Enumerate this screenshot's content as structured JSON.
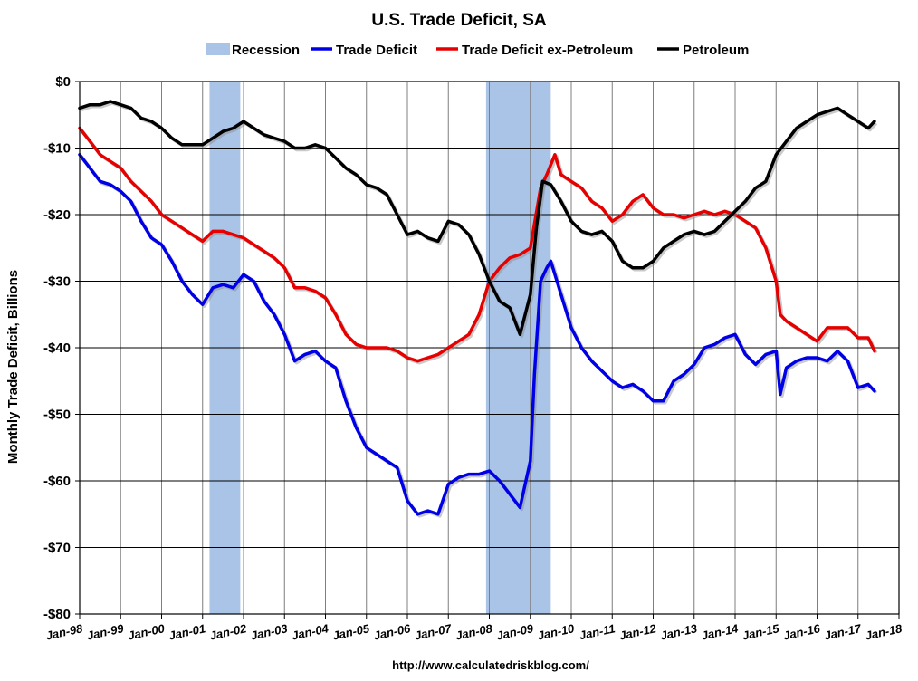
{
  "chart_data": {
    "type": "line",
    "title": "U.S. Trade Deficit, SA",
    "ylabel": "Monthly Trade Deficit, Billions",
    "xlabel": "",
    "source": "http://www.calculatedriskblog.com/",
    "ylim": [
      -80,
      0
    ],
    "y_ticks": [
      0,
      -10,
      -20,
      -30,
      -40,
      -50,
      -60,
      -70,
      -80
    ],
    "y_tick_labels": [
      "$0",
      "-$10",
      "-$20",
      "-$30",
      "-$40",
      "-$50",
      "-$60",
      "-$70",
      "-$80"
    ],
    "x_range": [
      1998.0,
      2018.0
    ],
    "x_tick_labels": [
      "Jan-98",
      "Jan-99",
      "Jan-00",
      "Jan-01",
      "Jan-02",
      "Jan-03",
      "Jan-04",
      "Jan-05",
      "Jan-06",
      "Jan-07",
      "Jan-08",
      "Jan-09",
      "Jan-10",
      "Jan-11",
      "Jan-12",
      "Jan-13",
      "Jan-14",
      "Jan-15",
      "Jan-16",
      "Jan-17",
      "Jan-18"
    ],
    "grid": true,
    "legend_position": "top",
    "legend": [
      "Recession",
      "Trade Deficit",
      "Trade Deficit ex-Petroleum",
      "Petroleum"
    ],
    "recessions": [
      {
        "start": 2001.17,
        "end": 2001.92
      },
      {
        "start": 2007.92,
        "end": 2009.5
      }
    ],
    "recession_color": "#aac4e8",
    "series": [
      {
        "name": "Trade Deficit",
        "color": "#0000e6",
        "points": [
          [
            1998.0,
            -11
          ],
          [
            1998.25,
            -13
          ],
          [
            1998.5,
            -15
          ],
          [
            1998.75,
            -15.5
          ],
          [
            1999.0,
            -16.5
          ],
          [
            1999.25,
            -18
          ],
          [
            1999.5,
            -21
          ],
          [
            1999.75,
            -23.5
          ],
          [
            2000.0,
            -24.5
          ],
          [
            2000.25,
            -27
          ],
          [
            2000.5,
            -30
          ],
          [
            2000.75,
            -32
          ],
          [
            2001.0,
            -33.5
          ],
          [
            2001.25,
            -31
          ],
          [
            2001.5,
            -30.5
          ],
          [
            2001.75,
            -31
          ],
          [
            2002.0,
            -29
          ],
          [
            2002.25,
            -30
          ],
          [
            2002.5,
            -33
          ],
          [
            2002.75,
            -35
          ],
          [
            2003.0,
            -38
          ],
          [
            2003.25,
            -42
          ],
          [
            2003.5,
            -41
          ],
          [
            2003.75,
            -40.5
          ],
          [
            2004.0,
            -42
          ],
          [
            2004.25,
            -43
          ],
          [
            2004.5,
            -48
          ],
          [
            2004.75,
            -52
          ],
          [
            2005.0,
            -55
          ],
          [
            2005.25,
            -56
          ],
          [
            2005.5,
            -57
          ],
          [
            2005.75,
            -58
          ],
          [
            2006.0,
            -63
          ],
          [
            2006.25,
            -65
          ],
          [
            2006.5,
            -64.5
          ],
          [
            2006.75,
            -65
          ],
          [
            2007.0,
            -60.5
          ],
          [
            2007.25,
            -59.5
          ],
          [
            2007.5,
            -59
          ],
          [
            2007.75,
            -59
          ],
          [
            2008.0,
            -58.5
          ],
          [
            2008.25,
            -60
          ],
          [
            2008.5,
            -62
          ],
          [
            2008.75,
            -64
          ],
          [
            2009.0,
            -57
          ],
          [
            2009.1,
            -44
          ],
          [
            2009.25,
            -30
          ],
          [
            2009.4,
            -28
          ],
          [
            2009.5,
            -27
          ],
          [
            2009.75,
            -32
          ],
          [
            2010.0,
            -37
          ],
          [
            2010.25,
            -40
          ],
          [
            2010.5,
            -42
          ],
          [
            2010.75,
            -43.5
          ],
          [
            2011.0,
            -45
          ],
          [
            2011.25,
            -46
          ],
          [
            2011.5,
            -45.5
          ],
          [
            2011.75,
            -46.5
          ],
          [
            2012.0,
            -48
          ],
          [
            2012.25,
            -48
          ],
          [
            2012.5,
            -45
          ],
          [
            2012.75,
            -44
          ],
          [
            2013.0,
            -42.5
          ],
          [
            2013.25,
            -40
          ],
          [
            2013.5,
            -39.5
          ],
          [
            2013.75,
            -38.5
          ],
          [
            2014.0,
            -38
          ],
          [
            2014.25,
            -41
          ],
          [
            2014.5,
            -42.5
          ],
          [
            2014.75,
            -41
          ],
          [
            2015.0,
            -40.5
          ],
          [
            2015.1,
            -47
          ],
          [
            2015.25,
            -43
          ],
          [
            2015.5,
            -42
          ],
          [
            2015.75,
            -41.5
          ],
          [
            2016.0,
            -41.5
          ],
          [
            2016.25,
            -42
          ],
          [
            2016.5,
            -40.5
          ],
          [
            2016.75,
            -42
          ],
          [
            2017.0,
            -46
          ],
          [
            2017.25,
            -45.5
          ],
          [
            2017.4,
            -46.5
          ]
        ]
      },
      {
        "name": "Trade Deficit ex-Petroleum",
        "color": "#e60000",
        "points": [
          [
            1998.0,
            -7
          ],
          [
            1998.25,
            -9
          ],
          [
            1998.5,
            -11
          ],
          [
            1998.75,
            -12
          ],
          [
            1999.0,
            -13
          ],
          [
            1999.25,
            -15
          ],
          [
            1999.5,
            -16.5
          ],
          [
            1999.75,
            -18
          ],
          [
            2000.0,
            -20
          ],
          [
            2000.25,
            -21
          ],
          [
            2000.5,
            -22
          ],
          [
            2000.75,
            -23
          ],
          [
            2001.0,
            -24
          ],
          [
            2001.25,
            -22.5
          ],
          [
            2001.5,
            -22.5
          ],
          [
            2001.75,
            -23
          ],
          [
            2002.0,
            -23.5
          ],
          [
            2002.25,
            -24.5
          ],
          [
            2002.5,
            -25.5
          ],
          [
            2002.75,
            -26.5
          ],
          [
            2003.0,
            -28
          ],
          [
            2003.25,
            -31
          ],
          [
            2003.5,
            -31
          ],
          [
            2003.75,
            -31.5
          ],
          [
            2004.0,
            -32.5
          ],
          [
            2004.25,
            -35
          ],
          [
            2004.5,
            -38
          ],
          [
            2004.75,
            -39.5
          ],
          [
            2005.0,
            -40
          ],
          [
            2005.25,
            -40
          ],
          [
            2005.5,
            -40
          ],
          [
            2005.75,
            -40.5
          ],
          [
            2006.0,
            -41.5
          ],
          [
            2006.25,
            -42
          ],
          [
            2006.5,
            -41.5
          ],
          [
            2006.75,
            -41
          ],
          [
            2007.0,
            -40
          ],
          [
            2007.25,
            -39
          ],
          [
            2007.5,
            -38
          ],
          [
            2007.75,
            -35
          ],
          [
            2008.0,
            -30
          ],
          [
            2008.25,
            -28
          ],
          [
            2008.5,
            -26.5
          ],
          [
            2008.75,
            -26
          ],
          [
            2009.0,
            -25
          ],
          [
            2009.25,
            -16
          ],
          [
            2009.4,
            -14
          ],
          [
            2009.6,
            -11
          ],
          [
            2009.75,
            -14
          ],
          [
            2010.0,
            -15
          ],
          [
            2010.25,
            -16
          ],
          [
            2010.5,
            -18
          ],
          [
            2010.75,
            -19
          ],
          [
            2011.0,
            -21
          ],
          [
            2011.25,
            -20
          ],
          [
            2011.5,
            -18
          ],
          [
            2011.75,
            -17
          ],
          [
            2012.0,
            -19
          ],
          [
            2012.25,
            -20
          ],
          [
            2012.5,
            -20
          ],
          [
            2012.75,
            -20.5
          ],
          [
            2013.0,
            -20
          ],
          [
            2013.25,
            -19.5
          ],
          [
            2013.5,
            -20
          ],
          [
            2013.75,
            -19.5
          ],
          [
            2014.0,
            -20
          ],
          [
            2014.25,
            -21
          ],
          [
            2014.5,
            -22
          ],
          [
            2014.75,
            -25
          ],
          [
            2015.0,
            -30
          ],
          [
            2015.1,
            -35
          ],
          [
            2015.25,
            -36
          ],
          [
            2015.5,
            -37
          ],
          [
            2015.75,
            -38
          ],
          [
            2016.0,
            -39
          ],
          [
            2016.25,
            -37
          ],
          [
            2016.5,
            -37
          ],
          [
            2016.75,
            -37
          ],
          [
            2017.0,
            -38.5
          ],
          [
            2017.25,
            -38.5
          ],
          [
            2017.4,
            -40.5
          ]
        ]
      },
      {
        "name": "Petroleum",
        "color": "#000000",
        "points": [
          [
            1998.0,
            -4
          ],
          [
            1998.25,
            -3.5
          ],
          [
            1998.5,
            -3.5
          ],
          [
            1998.75,
            -3
          ],
          [
            1999.0,
            -3.5
          ],
          [
            1999.25,
            -4
          ],
          [
            1999.5,
            -5.5
          ],
          [
            1999.75,
            -6
          ],
          [
            2000.0,
            -7
          ],
          [
            2000.25,
            -8.5
          ],
          [
            2000.5,
            -9.5
          ],
          [
            2000.75,
            -9.5
          ],
          [
            2001.0,
            -9.5
          ],
          [
            2001.25,
            -8.5
          ],
          [
            2001.5,
            -7.5
          ],
          [
            2001.75,
            -7
          ],
          [
            2002.0,
            -6
          ],
          [
            2002.25,
            -7
          ],
          [
            2002.5,
            -8
          ],
          [
            2002.75,
            -8.5
          ],
          [
            2003.0,
            -9
          ],
          [
            2003.25,
            -10
          ],
          [
            2003.5,
            -10
          ],
          [
            2003.75,
            -9.5
          ],
          [
            2004.0,
            -10
          ],
          [
            2004.25,
            -11.5
          ],
          [
            2004.5,
            -13
          ],
          [
            2004.75,
            -14
          ],
          [
            2005.0,
            -15.5
          ],
          [
            2005.25,
            -16
          ],
          [
            2005.5,
            -17
          ],
          [
            2005.75,
            -20
          ],
          [
            2006.0,
            -23
          ],
          [
            2006.25,
            -22.5
          ],
          [
            2006.5,
            -23.5
          ],
          [
            2006.75,
            -24
          ],
          [
            2007.0,
            -21
          ],
          [
            2007.25,
            -21.5
          ],
          [
            2007.5,
            -23
          ],
          [
            2007.75,
            -26
          ],
          [
            2008.0,
            -30
          ],
          [
            2008.25,
            -33
          ],
          [
            2008.5,
            -34
          ],
          [
            2008.75,
            -38
          ],
          [
            2009.0,
            -32
          ],
          [
            2009.15,
            -22
          ],
          [
            2009.3,
            -15
          ],
          [
            2009.5,
            -15.5
          ],
          [
            2009.75,
            -18
          ],
          [
            2010.0,
            -21
          ],
          [
            2010.25,
            -22.5
          ],
          [
            2010.5,
            -23
          ],
          [
            2010.75,
            -22.5
          ],
          [
            2011.0,
            -24
          ],
          [
            2011.25,
            -27
          ],
          [
            2011.5,
            -28
          ],
          [
            2011.75,
            -28
          ],
          [
            2012.0,
            -27
          ],
          [
            2012.25,
            -25
          ],
          [
            2012.5,
            -24
          ],
          [
            2012.75,
            -23
          ],
          [
            2013.0,
            -22.5
          ],
          [
            2013.25,
            -23
          ],
          [
            2013.5,
            -22.5
          ],
          [
            2013.75,
            -21
          ],
          [
            2014.0,
            -19.5
          ],
          [
            2014.25,
            -18
          ],
          [
            2014.5,
            -16
          ],
          [
            2014.75,
            -15
          ],
          [
            2015.0,
            -11
          ],
          [
            2015.25,
            -9
          ],
          [
            2015.5,
            -7
          ],
          [
            2015.75,
            -6
          ],
          [
            2016.0,
            -5
          ],
          [
            2016.25,
            -4.5
          ],
          [
            2016.5,
            -4
          ],
          [
            2016.75,
            -5
          ],
          [
            2017.0,
            -6
          ],
          [
            2017.25,
            -7
          ],
          [
            2017.4,
            -6
          ]
        ]
      }
    ]
  }
}
